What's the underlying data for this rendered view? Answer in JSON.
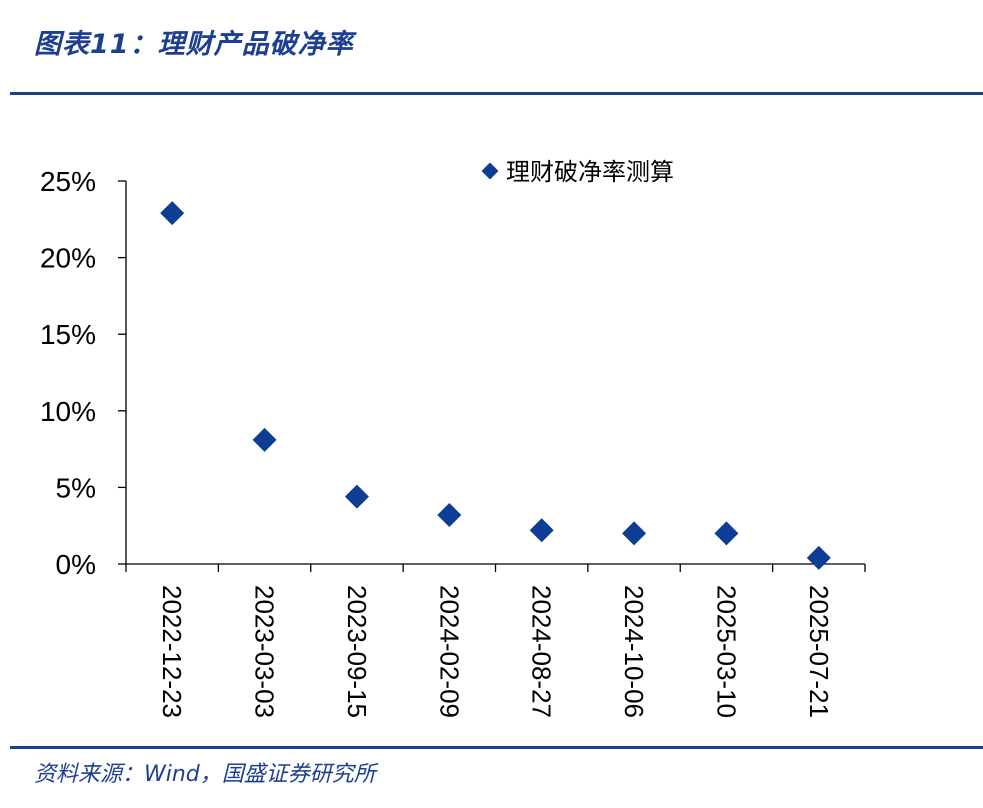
{
  "figure": {
    "title": "图表11：理财产品破净率",
    "source": "资料来源：Wind，国盛证券研究所"
  },
  "colors": {
    "brand": "#1d3f8f",
    "marker": "#0d3d94",
    "axis": "#000000"
  },
  "chart_data": {
    "type": "scatter",
    "marker": "diamond",
    "categories": [
      "2022-12-23",
      "2023-03-03",
      "2023-09-15",
      "2024-02-09",
      "2024-08-27",
      "2024-10-06",
      "2025-03-10",
      "2025-07-21"
    ],
    "series": [
      {
        "name": "理财破净率测算",
        "values": [
          22.9,
          8.1,
          4.4,
          3.2,
          2.2,
          2.0,
          2.0,
          0.4
        ]
      }
    ],
    "y_ticks": [
      "0%",
      "5%",
      "10%",
      "15%",
      "20%",
      "25%"
    ],
    "ylim": [
      0,
      25
    ],
    "y_unit": "%",
    "grid": false,
    "legend_position": "top-right"
  }
}
